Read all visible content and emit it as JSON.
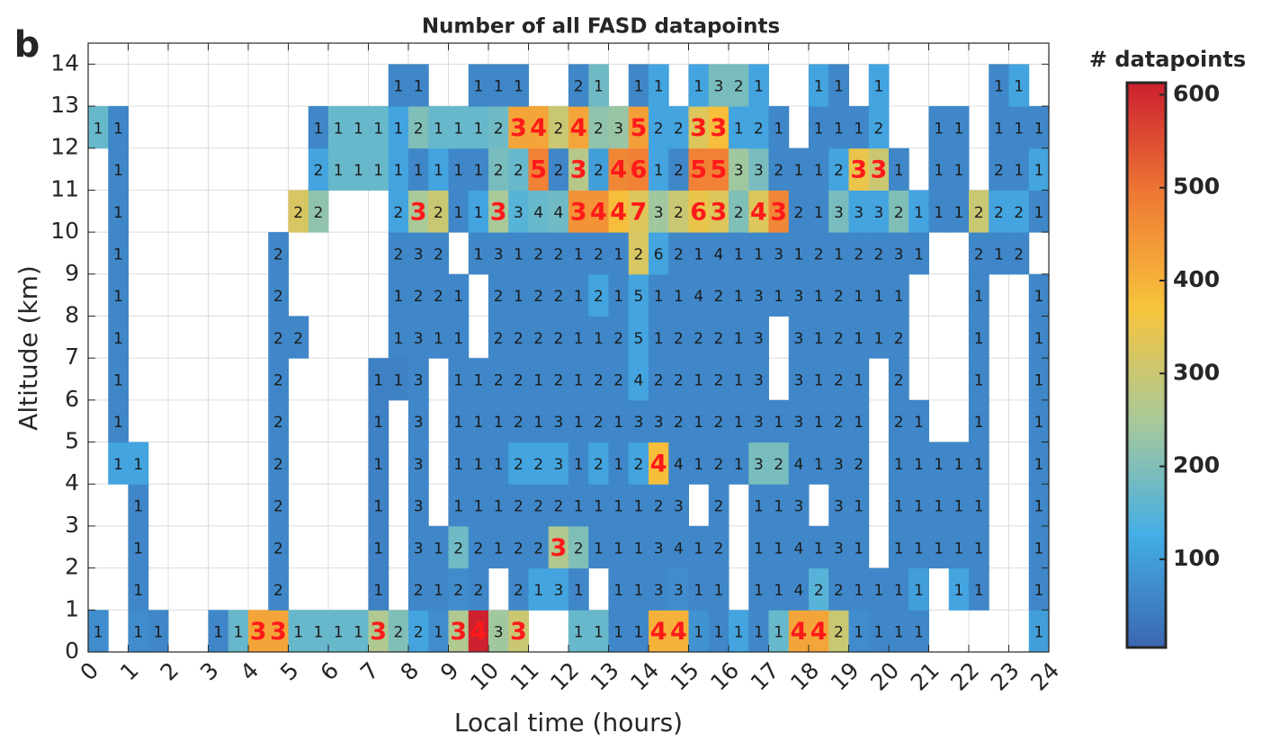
{
  "chart_data": {
    "type": "heatmap",
    "panel_label": "b",
    "title": "Number of all FASD datapoints",
    "x_label": "Local time (hours)",
    "y_label": "Altitude (km)",
    "colorbar_label": "# datapoints",
    "xlim": [
      0,
      24
    ],
    "ylim": [
      0,
      14.5
    ],
    "xticks": [
      0,
      1,
      2,
      3,
      4,
      5,
      6,
      7,
      8,
      9,
      10,
      11,
      12,
      13,
      14,
      15,
      16,
      17,
      18,
      19,
      20,
      21,
      22,
      23,
      24
    ],
    "yticks": [
      0,
      1,
      2,
      3,
      4,
      5,
      6,
      7,
      8,
      9,
      10,
      11,
      12,
      13,
      14
    ],
    "grid": true,
    "x_bins": [
      0,
      0.5,
      1,
      1.5,
      2,
      2.5,
      3,
      3.5,
      4,
      4.5,
      5,
      5.5,
      6,
      6.5,
      7,
      7.5,
      8,
      8.5,
      9,
      9.5,
      10,
      10.5,
      11,
      11.5,
      12,
      12.5,
      13,
      13.5,
      14,
      14.5,
      15,
      15.5,
      16,
      16.5,
      17,
      17.5,
      18,
      18.5,
      19,
      19.5,
      20,
      20.5,
      21,
      21.5,
      22,
      22.5,
      23,
      23.5,
      24
    ],
    "y_bins": [
      0,
      1,
      2,
      3,
      4,
      5,
      6,
      7,
      8,
      9,
      10,
      11,
      12,
      13,
      14
    ],
    "clim": [
      5,
      613
    ],
    "colorbar_ticks": [
      100,
      200,
      300,
      400,
      500,
      600
    ],
    "colormap": [
      "#3b66b0",
      "#44aee6",
      "#a8c99a",
      "#f7c43c",
      "#ef7a35",
      "#cc1f2f"
    ],
    "values": [
      [
        70,
        null,
        70,
        60,
        null,
        null,
        60,
        170,
        420,
        420,
        170,
        170,
        170,
        170,
        260,
        200,
        110,
        70,
        260,
        610,
        240,
        300,
        null,
        null,
        170,
        170,
        60,
        60,
        400,
        400,
        80,
        60,
        110,
        60,
        170,
        420,
        420,
        300,
        70,
        60,
        60,
        60,
        null,
        null,
        null,
        null,
        null,
        100
      ],
      [
        null,
        null,
        60,
        null,
        null,
        null,
        null,
        null,
        null,
        60,
        null,
        null,
        null,
        null,
        50,
        null,
        60,
        60,
        70,
        60,
        null,
        60,
        110,
        110,
        60,
        null,
        60,
        60,
        60,
        70,
        60,
        60,
        null,
        60,
        60,
        60,
        150,
        60,
        60,
        60,
        60,
        100,
        null,
        110,
        60,
        null,
        null,
        60
      ],
      [
        null,
        null,
        60,
        null,
        null,
        null,
        null,
        null,
        null,
        60,
        null,
        null,
        null,
        null,
        50,
        null,
        60,
        60,
        180,
        60,
        60,
        60,
        60,
        260,
        200,
        60,
        60,
        60,
        60,
        60,
        60,
        60,
        null,
        60,
        60,
        60,
        60,
        60,
        60,
        null,
        60,
        60,
        60,
        60,
        60,
        null,
        null,
        60
      ],
      [
        null,
        null,
        60,
        null,
        null,
        null,
        null,
        null,
        null,
        60,
        null,
        null,
        null,
        null,
        50,
        null,
        60,
        null,
        60,
        60,
        60,
        60,
        60,
        60,
        60,
        60,
        60,
        60,
        60,
        60,
        null,
        60,
        null,
        60,
        60,
        60,
        null,
        60,
        60,
        null,
        60,
        60,
        60,
        60,
        60,
        null,
        null,
        60
      ],
      [
        null,
        110,
        110,
        null,
        null,
        null,
        null,
        null,
        null,
        60,
        null,
        null,
        null,
        null,
        50,
        null,
        60,
        null,
        60,
        60,
        60,
        110,
        110,
        110,
        60,
        110,
        60,
        110,
        380,
        60,
        60,
        60,
        60,
        190,
        190,
        60,
        60,
        60,
        60,
        null,
        60,
        60,
        60,
        60,
        60,
        null,
        null,
        60
      ],
      [
        null,
        60,
        null,
        null,
        null,
        null,
        null,
        null,
        null,
        60,
        null,
        null,
        null,
        null,
        50,
        null,
        60,
        null,
        60,
        60,
        60,
        60,
        60,
        60,
        60,
        60,
        60,
        60,
        60,
        60,
        60,
        60,
        60,
        60,
        60,
        60,
        60,
        60,
        60,
        null,
        60,
        60,
        null,
        null,
        60,
        null,
        null,
        60
      ],
      [
        null,
        60,
        null,
        null,
        null,
        null,
        null,
        null,
        null,
        60,
        null,
        null,
        null,
        null,
        50,
        50,
        60,
        null,
        60,
        60,
        60,
        60,
        60,
        60,
        60,
        60,
        60,
        110,
        60,
        60,
        60,
        60,
        60,
        60,
        null,
        60,
        60,
        60,
        60,
        null,
        60,
        null,
        null,
        null,
        60,
        null,
        null,
        60
      ],
      [
        null,
        60,
        null,
        null,
        null,
        null,
        null,
        null,
        null,
        60,
        60,
        null,
        null,
        null,
        null,
        60,
        60,
        60,
        60,
        null,
        60,
        60,
        60,
        60,
        60,
        60,
        60,
        110,
        60,
        60,
        60,
        60,
        60,
        60,
        null,
        60,
        60,
        60,
        60,
        60,
        60,
        null,
        null,
        null,
        60,
        null,
        null,
        60
      ],
      [
        null,
        60,
        null,
        null,
        null,
        null,
        null,
        null,
        null,
        60,
        null,
        null,
        null,
        null,
        null,
        60,
        60,
        60,
        60,
        null,
        60,
        60,
        60,
        60,
        60,
        110,
        60,
        110,
        60,
        60,
        60,
        60,
        60,
        60,
        60,
        60,
        60,
        60,
        60,
        60,
        60,
        null,
        null,
        null,
        60,
        null,
        null,
        60
      ],
      [
        null,
        60,
        null,
        null,
        null,
        null,
        null,
        null,
        null,
        60,
        null,
        null,
        null,
        null,
        null,
        60,
        60,
        60,
        null,
        60,
        60,
        60,
        60,
        60,
        60,
        60,
        60,
        320,
        110,
        60,
        60,
        60,
        60,
        60,
        60,
        60,
        60,
        60,
        60,
        60,
        60,
        60,
        null,
        null,
        60,
        60,
        60,
        null
      ],
      [
        null,
        60,
        null,
        null,
        null,
        null,
        null,
        null,
        null,
        null,
        320,
        220,
        null,
        null,
        null,
        110,
        250,
        300,
        60,
        110,
        250,
        150,
        170,
        180,
        450,
        450,
        380,
        330,
        240,
        300,
        350,
        330,
        200,
        330,
        470,
        60,
        60,
        190,
        110,
        110,
        200,
        110,
        60,
        60,
        300,
        110,
        110,
        60
      ],
      [
        null,
        60,
        null,
        null,
        null,
        null,
        null,
        null,
        null,
        null,
        null,
        110,
        170,
        170,
        170,
        110,
        60,
        110,
        60,
        60,
        190,
        170,
        480,
        60,
        270,
        100,
        470,
        480,
        110,
        60,
        480,
        480,
        240,
        190,
        60,
        60,
        60,
        110,
        350,
        300,
        60,
        null,
        60,
        60,
        null,
        60,
        60,
        110
      ],
      [
        170,
        60,
        null,
        null,
        null,
        null,
        null,
        null,
        null,
        null,
        null,
        60,
        170,
        170,
        170,
        110,
        200,
        170,
        170,
        170,
        180,
        420,
        420,
        300,
        420,
        220,
        230,
        430,
        110,
        110,
        330,
        380,
        110,
        110,
        60,
        null,
        60,
        60,
        60,
        110,
        null,
        null,
        60,
        60,
        null,
        60,
        60,
        60
      ],
      [
        null,
        null,
        null,
        null,
        null,
        null,
        null,
        null,
        null,
        null,
        null,
        null,
        null,
        null,
        null,
        60,
        60,
        null,
        null,
        60,
        60,
        60,
        null,
        null,
        60,
        180,
        null,
        60,
        110,
        null,
        110,
        190,
        190,
        110,
        null,
        null,
        110,
        60,
        null,
        110,
        null,
        null,
        null,
        null,
        null,
        60,
        110,
        null
      ]
    ],
    "cell_counts": [
      [
        1,
        null,
        1,
        1,
        null,
        null,
        1,
        1,
        3,
        3,
        1,
        1,
        1,
        1,
        3,
        2,
        2,
        1,
        3,
        4,
        3,
        3,
        null,
        null,
        1,
        1,
        1,
        1,
        4,
        4,
        1,
        1,
        1,
        1,
        1,
        4,
        4,
        2,
        1,
        1,
        1,
        1,
        null,
        null,
        null,
        null,
        null,
        1
      ],
      [
        null,
        null,
        1,
        null,
        null,
        null,
        null,
        null,
        null,
        2,
        null,
        null,
        null,
        null,
        1,
        null,
        2,
        1,
        2,
        2,
        null,
        2,
        1,
        3,
        1,
        null,
        1,
        1,
        3,
        3,
        1,
        1,
        null,
        1,
        1,
        4,
        2,
        2,
        1,
        1,
        1,
        1,
        null,
        1,
        1,
        null,
        null,
        1
      ],
      [
        null,
        null,
        1,
        null,
        null,
        null,
        null,
        null,
        null,
        2,
        null,
        null,
        null,
        null,
        1,
        null,
        3,
        1,
        2,
        2,
        1,
        2,
        2,
        3,
        2,
        1,
        1,
        1,
        3,
        4,
        1,
        2,
        null,
        1,
        1,
        4,
        1,
        3,
        1,
        null,
        1,
        1,
        1,
        1,
        1,
        null,
        null,
        1
      ],
      [
        null,
        null,
        1,
        null,
        null,
        null,
        null,
        null,
        null,
        2,
        null,
        null,
        null,
        null,
        1,
        null,
        3,
        null,
        1,
        1,
        1,
        2,
        2,
        2,
        1,
        1,
        1,
        1,
        2,
        3,
        null,
        2,
        null,
        1,
        1,
        3,
        null,
        3,
        1,
        null,
        1,
        1,
        1,
        1,
        1,
        null,
        null,
        1
      ],
      [
        null,
        1,
        1,
        null,
        null,
        null,
        null,
        null,
        null,
        2,
        null,
        null,
        null,
        null,
        1,
        null,
        3,
        null,
        1,
        1,
        1,
        2,
        2,
        3,
        1,
        2,
        1,
        2,
        4,
        4,
        1,
        2,
        1,
        3,
        2,
        4,
        1,
        3,
        2,
        null,
        1,
        1,
        1,
        1,
        1,
        null,
        null,
        1
      ],
      [
        null,
        1,
        null,
        null,
        null,
        null,
        null,
        null,
        null,
        2,
        null,
        null,
        null,
        null,
        1,
        null,
        3,
        null,
        1,
        1,
        1,
        2,
        1,
        3,
        1,
        2,
        1,
        3,
        3,
        2,
        1,
        2,
        1,
        3,
        1,
        3,
        1,
        2,
        1,
        null,
        2,
        1,
        null,
        null,
        1,
        null,
        null,
        1
      ],
      [
        null,
        1,
        null,
        null,
        null,
        null,
        null,
        null,
        null,
        2,
        null,
        null,
        null,
        null,
        1,
        1,
        3,
        null,
        1,
        1,
        2,
        2,
        1,
        2,
        1,
        2,
        2,
        4,
        2,
        2,
        1,
        2,
        1,
        3,
        null,
        3,
        1,
        2,
        1,
        null,
        2,
        null,
        null,
        null,
        1,
        null,
        null,
        1
      ],
      [
        null,
        1,
        null,
        null,
        null,
        null,
        null,
        null,
        null,
        2,
        2,
        null,
        null,
        null,
        null,
        1,
        3,
        1,
        1,
        null,
        2,
        2,
        2,
        2,
        1,
        1,
        2,
        5,
        1,
        2,
        2,
        2,
        1,
        3,
        null,
        3,
        1,
        2,
        1,
        1,
        2,
        null,
        null,
        null,
        1,
        null,
        null,
        1
      ],
      [
        null,
        1,
        null,
        null,
        null,
        null,
        null,
        null,
        null,
        2,
        null,
        null,
        null,
        null,
        null,
        1,
        2,
        2,
        1,
        null,
        2,
        1,
        2,
        2,
        1,
        2,
        1,
        5,
        1,
        1,
        4,
        2,
        1,
        3,
        1,
        3,
        1,
        2,
        1,
        1,
        1,
        null,
        null,
        null,
        1,
        null,
        null,
        1
      ],
      [
        null,
        1,
        null,
        null,
        null,
        null,
        null,
        null,
        null,
        2,
        null,
        null,
        null,
        null,
        null,
        2,
        3,
        2,
        null,
        1,
        3,
        1,
        2,
        2,
        1,
        2,
        1,
        2,
        6,
        2,
        1,
        4,
        1,
        1,
        3,
        1,
        2,
        1,
        2,
        2,
        3,
        1,
        null,
        null,
        2,
        1,
        2,
        null
      ],
      [
        null,
        1,
        null,
        null,
        null,
        null,
        null,
        null,
        null,
        null,
        2,
        2,
        null,
        null,
        null,
        2,
        3,
        2,
        1,
        1,
        3,
        3,
        4,
        4,
        3,
        4,
        4,
        7,
        3,
        2,
        6,
        3,
        2,
        4,
        3,
        2,
        1,
        3,
        3,
        3,
        2,
        1,
        1,
        1,
        2,
        2,
        2,
        1
      ],
      [
        null,
        1,
        null,
        null,
        null,
        null,
        null,
        null,
        null,
        null,
        null,
        2,
        1,
        1,
        1,
        1,
        1,
        1,
        1,
        1,
        2,
        2,
        5,
        2,
        3,
        2,
        4,
        6,
        1,
        2,
        5,
        5,
        3,
        3,
        2,
        1,
        1,
        2,
        3,
        3,
        1,
        null,
        1,
        1,
        null,
        2,
        1,
        1
      ],
      [
        1,
        1,
        null,
        null,
        null,
        null,
        null,
        null,
        null,
        null,
        null,
        1,
        1,
        1,
        1,
        1,
        2,
        1,
        1,
        1,
        2,
        3,
        4,
        2,
        4,
        2,
        3,
        5,
        2,
        2,
        3,
        3,
        1,
        2,
        1,
        null,
        1,
        1,
        1,
        2,
        null,
        null,
        1,
        1,
        null,
        1,
        1,
        1
      ],
      [
        null,
        null,
        null,
        null,
        null,
        null,
        null,
        null,
        null,
        null,
        null,
        null,
        null,
        null,
        null,
        1,
        1,
        null,
        null,
        1,
        1,
        1,
        null,
        null,
        2,
        1,
        null,
        1,
        1,
        null,
        1,
        3,
        2,
        1,
        null,
        null,
        1,
        1,
        null,
        1,
        null,
        null,
        null,
        null,
        null,
        1,
        1,
        null
      ]
    ]
  }
}
